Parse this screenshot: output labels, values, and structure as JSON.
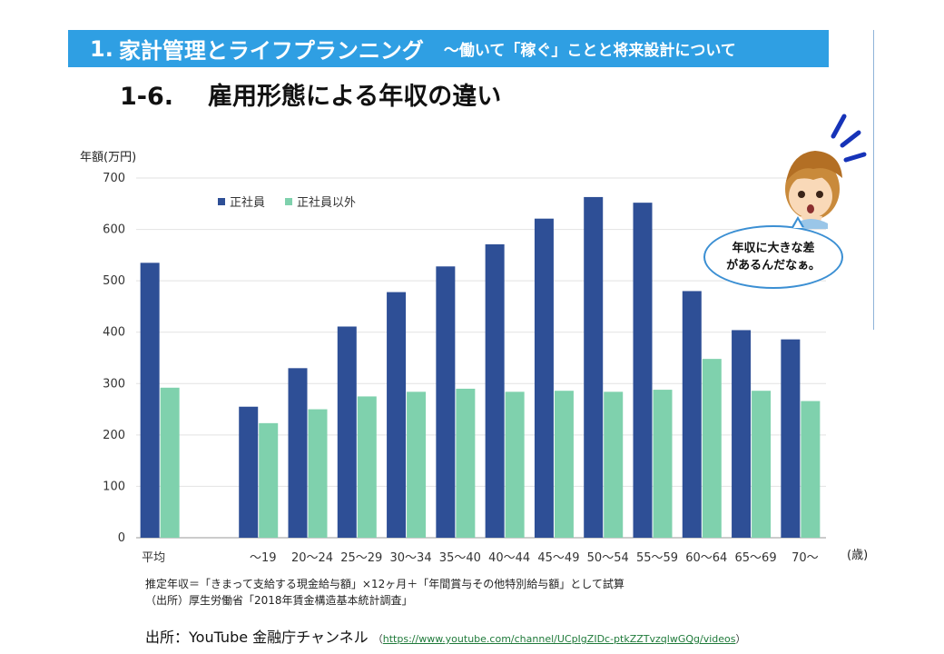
{
  "header": {
    "number": "1.",
    "title": "家計管理とライフプランニング",
    "subtitle": "～働いて「稼ぐ」ことと将来設計について"
  },
  "section": {
    "number": "1-6.",
    "title": "雇用形態による年収の違い"
  },
  "speech_bubble": {
    "line1": "年収に大きな差",
    "line2": "があるんだなぁ。"
  },
  "notes": {
    "line1": "推定年収＝「きまって支給する現金給与額」×12ヶ月＋「年間賞与その他特別給与額」として試算",
    "line2": "（出所）厚生労働省「2018年賃金構造基本統計調査」"
  },
  "source": {
    "label": "出所：YouTube 金融庁チャンネル",
    "paren_open": "（",
    "url": "https://www.youtube.com/channel/UCpIgZIDc-ptkZZTvzqlwGQg/videos",
    "paren_close": "）"
  },
  "colors": {
    "header_bg": "#2f9fe3",
    "regular": "#2e4f96",
    "non_regular": "#7fd1ad"
  },
  "chart_data": {
    "type": "bar",
    "ylabel": "年額(万円)",
    "xunit": "(歳)",
    "ylim": [
      0,
      700
    ],
    "yticks": [
      0,
      100,
      200,
      300,
      400,
      500,
      600,
      700
    ],
    "grid": true,
    "legend_position": "top-left",
    "categories": [
      "平均",
      "",
      "～19",
      "20～24",
      "25～29",
      "30～34",
      "35～40",
      "40～44",
      "45～49",
      "50～54",
      "55～59",
      "60～64",
      "65～69",
      "70～"
    ],
    "series": [
      {
        "name": "正社員",
        "values": [
          535,
          null,
          255,
          330,
          411,
          478,
          528,
          571,
          621,
          663,
          652,
          480,
          404,
          386
        ]
      },
      {
        "name": "正社員以外",
        "values": [
          292,
          null,
          223,
          250,
          275,
          284,
          290,
          284,
          286,
          284,
          288,
          348,
          286,
          266
        ]
      }
    ]
  }
}
